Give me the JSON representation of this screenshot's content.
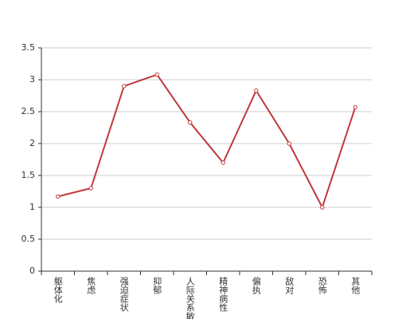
{
  "chart_data": {
    "type": "line",
    "categories": [
      "躯体化",
      "焦虑",
      "强迫症状",
      "抑郁",
      "人际关系敏感",
      "精神病性",
      "偏执",
      "敌对",
      "恐怖",
      "其他"
    ],
    "values": [
      1.17,
      1.3,
      2.9,
      3.08,
      2.33,
      1.7,
      2.83,
      2.0,
      1.0,
      2.57
    ],
    "color": "#c0393b",
    "ylim": [
      0,
      3.5
    ],
    "yticks": [
      0,
      0.5,
      1,
      1.5,
      2,
      2.5,
      3,
      3.5
    ],
    "grid": true
  }
}
